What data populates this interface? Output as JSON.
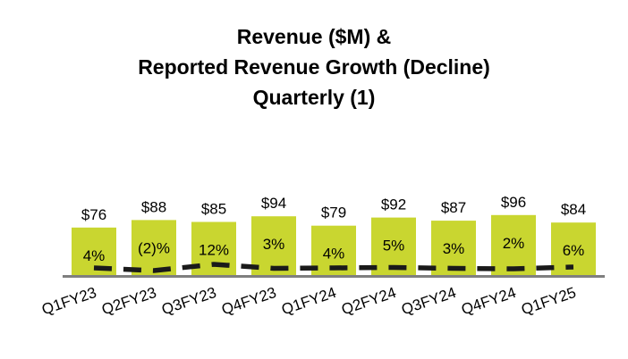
{
  "title_lines": [
    "Revenue ($M) &",
    "Reported Revenue Growth (Decline)",
    "Quarterly (1)"
  ],
  "colors": {
    "bar": "#c9d630",
    "growth_line": "#1a1a1a",
    "axis": "#7f7f7f",
    "text": "#000000"
  },
  "chart_data": {
    "type": "bar",
    "title": "Revenue ($M) & Reported Revenue Growth (Decline) Quarterly (1)",
    "categories": [
      "Q1FY23",
      "Q2FY23",
      "Q3FY23",
      "Q4FY23",
      "Q1FY24",
      "Q2FY24",
      "Q3FY24",
      "Q4FY24",
      "Q1FY25"
    ],
    "series": [
      {
        "type": "bar",
        "values": [
          76,
          88,
          85,
          94,
          79,
          92,
          87,
          96,
          84
        ],
        "value_labels": [
          "$76",
          "$88",
          "$85",
          "$94",
          "$79",
          "$92",
          "$87",
          "$96",
          "$84"
        ]
      },
      {
        "type": "line",
        "style": "dashed",
        "values": [
          4,
          -2,
          12,
          3,
          4,
          5,
          3,
          2,
          6
        ],
        "value_labels": [
          "4%",
          "(2)%",
          "12%",
          "3%",
          "4%",
          "5%",
          "3%",
          "2%",
          "6%"
        ]
      }
    ],
    "xlabel": "",
    "ylabel": "",
    "grid": false,
    "legend": "none"
  }
}
